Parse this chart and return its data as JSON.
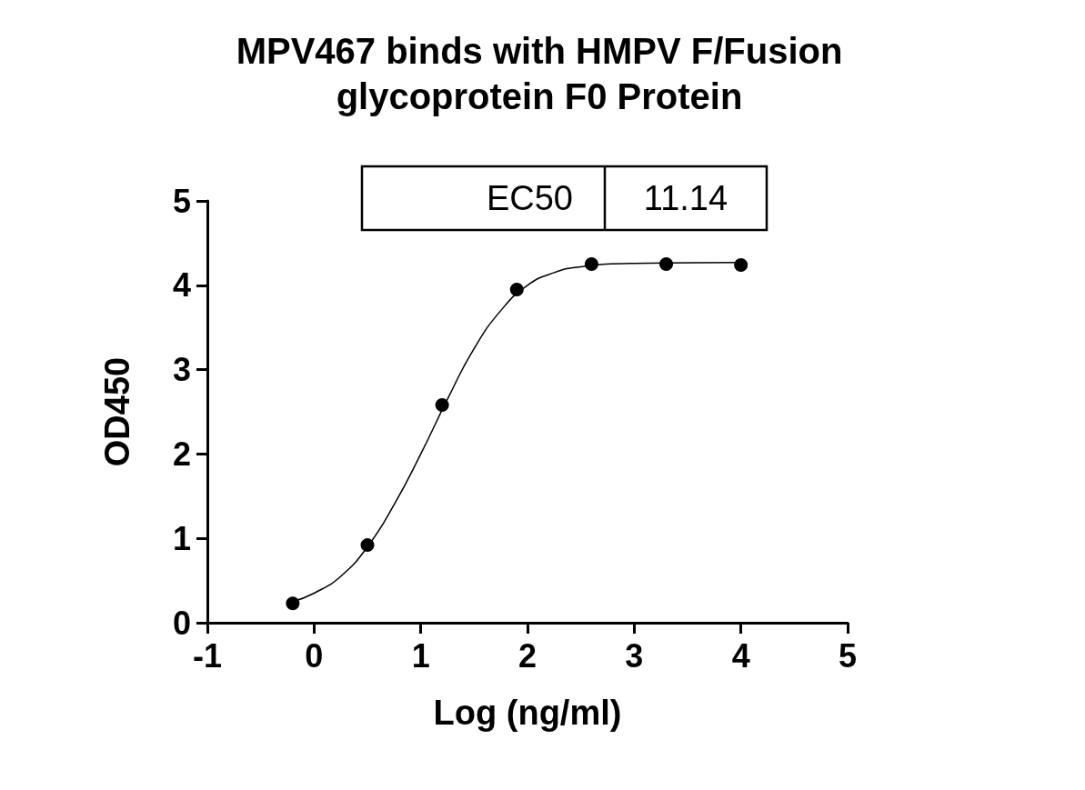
{
  "chart_data": {
    "type": "scatter",
    "title": "MPV467 binds with HMPV F/Fusion\nglycoprotein F0 Protein",
    "xlabel": "Log (ng/ml)",
    "ylabel": "OD450",
    "annotations": [
      "EC50",
      "11.14"
    ],
    "series": [
      {
        "color": "#000000",
        "x": [
          -0.2,
          0.5,
          1.2,
          1.9,
          2.6,
          3.3,
          4.0
        ],
        "values": [
          0.23,
          0.92,
          2.58,
          3.95,
          4.25,
          4.25,
          4.24
        ]
      },
      {
        "type": "line",
        "marker": "none",
        "color": "#000000",
        "x": [
          -0.2,
          0,
          0.25,
          0.5,
          0.75,
          1.0,
          1.25,
          1.5,
          1.75,
          2.0,
          2.25,
          2.5,
          3.0,
          4.0
        ],
        "values": [
          0.25,
          0.35,
          0.55,
          0.9,
          1.4,
          2.0,
          2.65,
          3.25,
          3.7,
          4.0,
          4.15,
          4.22,
          4.26,
          4.27
        ]
      }
    ],
    "xlim": [
      -1,
      5
    ],
    "xticks": [
      -1,
      0,
      1,
      2,
      3,
      4,
      5
    ],
    "ylim": [
      0,
      5
    ],
    "yticks": [
      0,
      1,
      2,
      3,
      4,
      5
    ],
    "grid": false,
    "marker": "circle",
    "line_style": "solid"
  }
}
